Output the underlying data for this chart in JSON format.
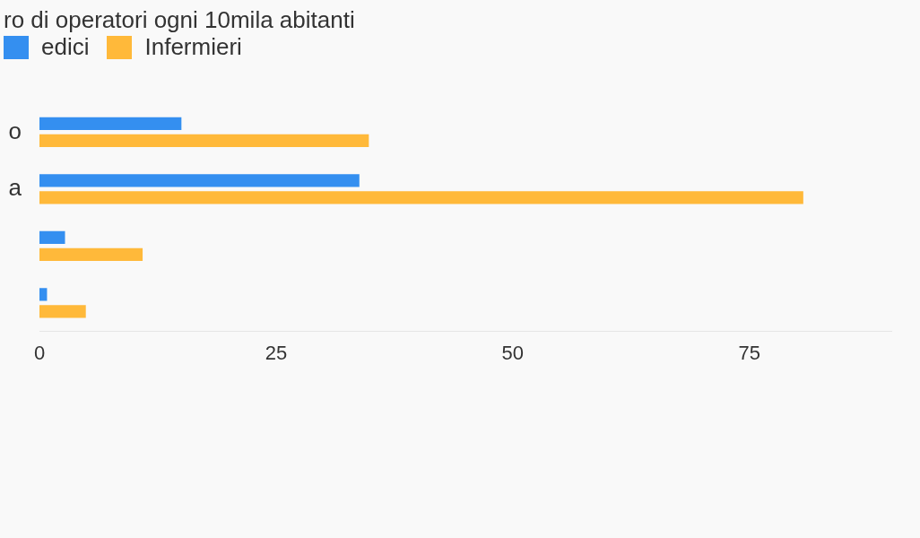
{
  "chart_data": {
    "type": "bar",
    "orientation": "horizontal",
    "title": "ro di operatori ogni 10mila abitanti",
    "categories": [
      "o",
      "a",
      null,
      null
    ],
    "series": [
      {
        "name": "edici",
        "color": "#348ff0",
        "values": [
          15.0,
          33.8,
          2.7,
          0.8
        ]
      },
      {
        "name": "Infermieri",
        "color": "#ffb93a",
        "values": [
          34.8,
          80.7,
          10.9,
          4.9
        ]
      }
    ],
    "xlim": [
      0,
      90
    ],
    "xticks": [
      0,
      25,
      50,
      75
    ],
    "grid": false,
    "legend": "top left"
  }
}
